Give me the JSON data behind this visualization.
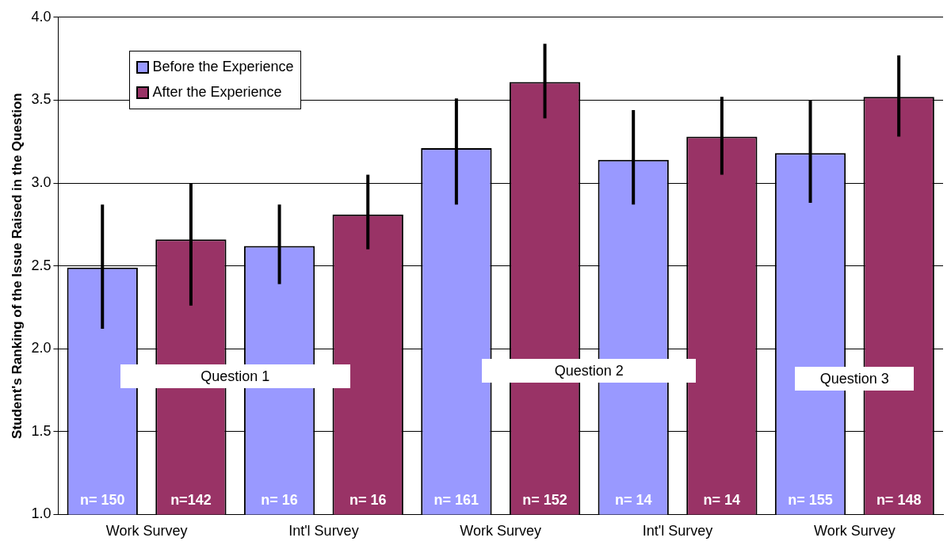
{
  "chart_data": {
    "type": "bar",
    "ylabel": "Student's Ranking of the Issue Raised in the Question",
    "categories": [
      "Work Survey",
      "Int'l Survey",
      "Work Survey",
      "Int'l Survey",
      "Work Survey"
    ],
    "series": [
      {
        "name": "Before the Experience",
        "color": "#9999ff",
        "values": [
          2.49,
          2.62,
          3.21,
          3.14,
          3.18
        ],
        "errors": [
          [
            2.12,
            2.87
          ],
          [
            2.39,
            2.87
          ],
          [
            2.87,
            3.51
          ],
          [
            2.87,
            3.44
          ],
          [
            2.88,
            3.5
          ]
        ]
      },
      {
        "name": "After the Experience",
        "color": "#993366",
        "values": [
          2.66,
          2.81,
          3.61,
          3.28,
          3.52
        ],
        "errors": [
          [
            2.26,
            3.0
          ],
          [
            2.6,
            3.05
          ],
          [
            3.39,
            3.84
          ],
          [
            3.05,
            3.52
          ],
          [
            3.28,
            3.77
          ]
        ]
      }
    ],
    "annotations": [
      "Question 1",
      "Question 2",
      "Question 3",
      "n= 150",
      "n=142",
      "n= 16",
      "n= 16",
      "n= 161",
      "n= 152",
      "n= 14",
      "n= 14",
      "n= 155",
      "n= 148"
    ],
    "ylim": [
      1.0,
      4.0
    ],
    "yticks": [
      {
        "value": 1,
        "label": "1.0"
      },
      {
        "value": 1.5,
        "label": "1.5"
      },
      {
        "value": 2,
        "label": "2.0"
      },
      {
        "value": 2.5,
        "label": "2.5"
      },
      {
        "value": 3,
        "label": "3.0"
      },
      {
        "value": 3.5,
        "label": "3.5"
      },
      {
        "value": 4,
        "label": "4.0"
      }
    ],
    "grid": "y",
    "legend": "top left"
  }
}
